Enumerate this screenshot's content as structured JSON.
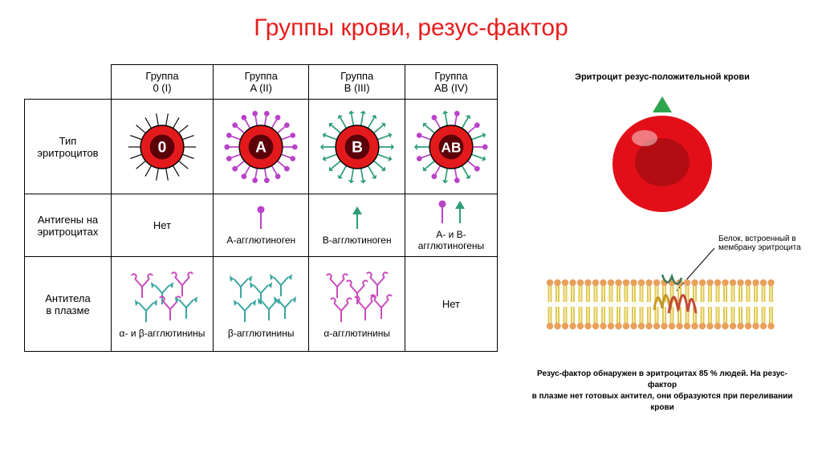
{
  "title": "Группы крови, резус-фактор",
  "table": {
    "columns": [
      "Группа\n0 (I)",
      "Группа\nA (II)",
      "Группа\nB (III)",
      "Группа\nAB (IV)"
    ],
    "row_labels": [
      "Тип\nэритроцитов",
      "Антигены на\nэритроцитах",
      "Антитела\nв плазме"
    ],
    "erythrocytes": {
      "labels": [
        "0",
        "A",
        "B",
        "AB"
      ],
      "core_dark": "#5b0008",
      "ring_red": "#e31a1c",
      "outline": "#000000",
      "antigen_a_color": "#b942c9",
      "antigen_b_color": "#2d9d7a"
    },
    "antigens_row": [
      "Нет",
      "A-агглютиноген",
      "B-агглютиноген",
      "A- и B-\nагглютиногены"
    ],
    "antibodies_row": [
      "α- и β-агглютинины",
      "β-агглютинины",
      "α-агглютинины",
      "Нет"
    ],
    "antibody_a_color": "#c94bbd",
    "antibody_b_color": "#3aa6a0"
  },
  "rh": {
    "caption_top": "Эритроцит резус-положительной крови",
    "erythrocyte_color": "#e20f19",
    "erythrocyte_dark": "#8c0c0f",
    "arrow_color": "#2da44e",
    "label_protein": "Белок, встроенный в\nмембрану эритроцита",
    "membrane_head_color": "#e8a05a",
    "membrane_tail_color": "#e0c84c",
    "caption_bottom": "Резус-фактор обнаружен в эритроцитах 85 % людей. На резус-фактор\nв плазме нет готовых антител, они образуются при переливании крови"
  }
}
